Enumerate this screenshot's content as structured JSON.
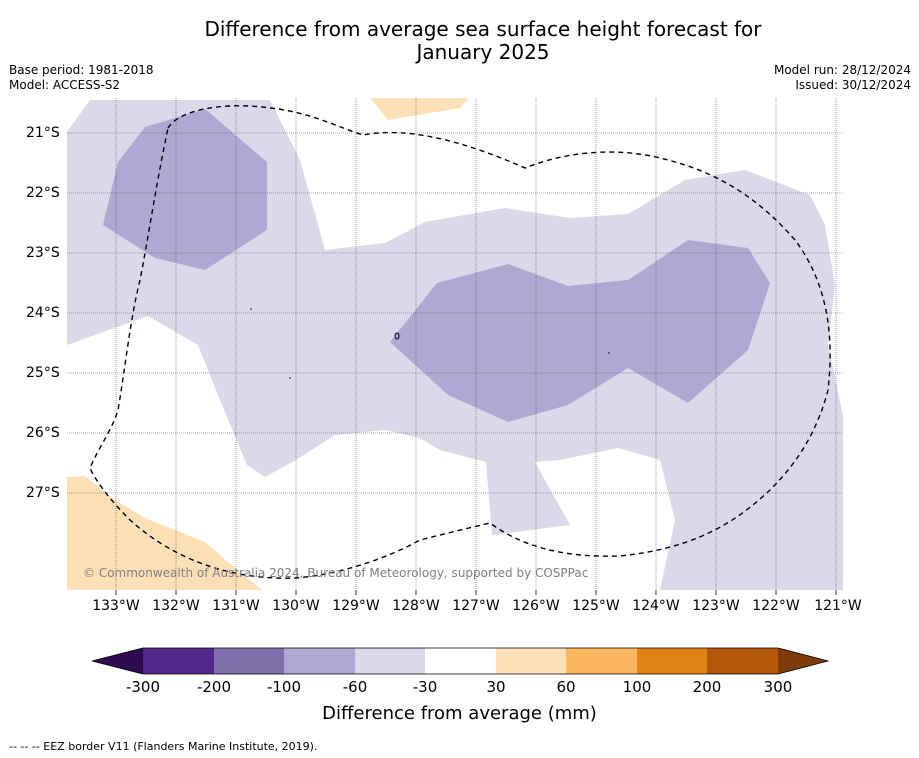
{
  "title_line1": "Difference from average sea surface height forecast for",
  "title_line2": "January 2025",
  "meta_left": [
    "Base period: 1981-2018",
    "Model: ACCESS-S2"
  ],
  "meta_right": [
    "Model run: 28/12/2024",
    "Issued: 30/12/2024"
  ],
  "lat_labels": [
    "21°S",
    "22°S",
    "23°S",
    "24°S",
    "25°S",
    "26°S",
    "27°S"
  ],
  "lon_labels": [
    "133°W",
    "132°W",
    "131°W",
    "130°W",
    "129°W",
    "128°W",
    "127°W",
    "126°W",
    "125°W",
    "124°W",
    "123°W",
    "122°W",
    "121°W"
  ],
  "copyright": "© Commonwealth of Australia 2024, Bureau of Meteorology, supported by COSPPac",
  "colorbar": {
    "ticks": [
      "-300",
      "-200",
      "-100",
      "-60",
      "-30",
      "30",
      "60",
      "100",
      "200",
      "300"
    ],
    "colors": [
      "#2d0b4e",
      "#54288a",
      "#7f6fab",
      "#b0a8d2",
      "#d9d9ea",
      "#ffffff",
      "#fee0b7",
      "#fdb762",
      "#e08214",
      "#b35806",
      "#7f3b08"
    ],
    "label": "Difference from average (mm)"
  },
  "footnote": "-- -- -- EEZ border V11 (Flanders Marine Institute, 2019)."
}
